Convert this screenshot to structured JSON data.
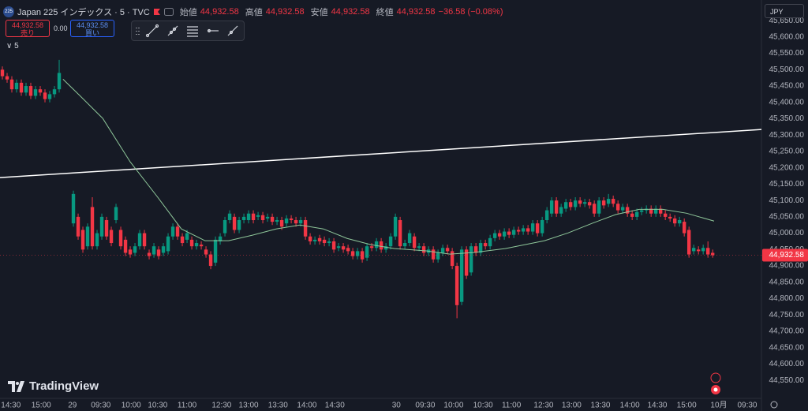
{
  "chart_data": {
    "type": "candlestick",
    "title": "Japan 225 インデックス · 5 · TVC",
    "symbol_badge": "225",
    "ohlc_labels": [
      "始値",
      "高値",
      "安値",
      "終値"
    ],
    "ohlc_values": [
      "44,932.58",
      "44,932.58",
      "44,932.58",
      "44,932.58"
    ],
    "change": "−36.58 (−0.08%)",
    "sell_price": "44,932.58",
    "sell_label": "売り",
    "spread": "0.00",
    "buy_price": "44,932.58",
    "buy_label": "買い",
    "indicator_label": "5",
    "currency": "JPY",
    "logo": "TradingView",
    "up_color": "#089981",
    "down_color": "#f23645",
    "last_price": {
      "value": 44932.58,
      "label": "44,932.58"
    },
    "xlim": [
      -0.5,
      160.3
    ],
    "xticks": [
      {
        "value": 1.8,
        "label": "14:30"
      },
      {
        "value": 8.2,
        "label": "15:00"
      },
      {
        "value": 14.8,
        "label": "29"
      },
      {
        "value": 20.8,
        "label": "09:30"
      },
      {
        "value": 27.2,
        "label": "10:00"
      },
      {
        "value": 32.8,
        "label": "10:30"
      },
      {
        "value": 39,
        "label": "11:00"
      },
      {
        "value": 46.3,
        "label": "12:30"
      },
      {
        "value": 52,
        "label": "13:00"
      },
      {
        "value": 58.2,
        "label": "13:30"
      },
      {
        "value": 64.3,
        "label": "14:00"
      },
      {
        "value": 70.2,
        "label": "14:30"
      },
      {
        "value": 83.2,
        "label": "30"
      },
      {
        "value": 89.3,
        "label": "09:30"
      },
      {
        "value": 95.3,
        "label": "10:00"
      },
      {
        "value": 101.5,
        "label": "10:30"
      },
      {
        "value": 107.5,
        "label": "11:00"
      },
      {
        "value": 114.3,
        "label": "12:30"
      },
      {
        "value": 120.2,
        "label": "13:00"
      },
      {
        "value": 126.3,
        "label": "13:30"
      },
      {
        "value": 132.5,
        "label": "14:00"
      },
      {
        "value": 138.3,
        "label": "14:30"
      },
      {
        "value": 144.5,
        "label": "15:00"
      },
      {
        "value": 151.3,
        "label": "10月"
      },
      {
        "value": 157.3,
        "label": "09:30"
      }
    ],
    "ylim": [
      44507,
      45713
    ],
    "yticks": [
      {
        "value": 44550,
        "label": "44,550.00"
      },
      {
        "value": 44600,
        "label": "44,600.00"
      },
      {
        "value": 44650,
        "label": "44,650.00"
      },
      {
        "value": 44700,
        "label": "44,700.00"
      },
      {
        "value": 44750,
        "label": "44,750.00"
      },
      {
        "value": 44800,
        "label": "44,800.00"
      },
      {
        "value": 44850,
        "label": "44,850.00"
      },
      {
        "value": 44900,
        "label": "44,900.00"
      },
      {
        "value": 44950,
        "label": "44,950.00"
      },
      {
        "value": 45000,
        "label": "45,000.00"
      },
      {
        "value": 45050,
        "label": "45,050.00"
      },
      {
        "value": 45100,
        "label": "45,100.00"
      },
      {
        "value": 45150,
        "label": "45,150.00"
      },
      {
        "value": 45200,
        "label": "45,200.00"
      },
      {
        "value": 45250,
        "label": "45,250.00"
      },
      {
        "value": 45300,
        "label": "45,300.00"
      },
      {
        "value": 45350,
        "label": "45,350.00"
      },
      {
        "value": 45400,
        "label": "45,400.00"
      },
      {
        "value": 45450,
        "label": "45,450.00"
      },
      {
        "value": 45500,
        "label": "45,500.00"
      },
      {
        "value": 45550,
        "label": "45,550.00"
      },
      {
        "value": 45600,
        "label": "45,600.00"
      },
      {
        "value": 45650,
        "label": "45,650.00"
      }
    ],
    "open": [
      45500,
      45480,
      45470,
      45440,
      45460,
      45430,
      45450,
      45420,
      45440,
      45430,
      45410,
      45425,
      45440,
      null,
      null,
      45030,
      45050,
      45010,
      44960,
      45080,
      44960,
      44990,
      45040,
      45010,
      45040,
      45010,
      44980,
      44950,
      44940,
      44960,
      45000,
      44940,
      44935,
      44950,
      44940,
      44945,
      44990,
      45020,
      44990,
      44980,
      44980,
      44960,
      44965,
      44950,
      44935,
      44910,
      44975,
      45000,
      45040,
      45050,
      45010,
      45040,
      45040,
      45060,
      45050,
      45055,
      45045,
      45050,
      45035,
      45040,
      45030,
      45045,
      45040,
      45030,
      45040,
      44990,
      44975,
      44985,
      44980,
      44970,
      44975,
      44955,
      44960,
      44955,
      44945,
      44930,
      44945,
      44925,
      44960,
      44955,
      44975,
      44950,
      44960,
      44990,
      45040,
      44960,
      44970,
      44990,
      44955,
      44960,
      44940,
      44950,
      44920,
      44940,
      44955,
      44945,
      44900,
      44790,
      44950,
      44880,
      44960,
      44940,
      44970,
      44960,
      44985,
      45000,
      44990,
      45005,
      44995,
      45010,
      45005,
      45015,
      45005,
      45030,
      45000,
      45040,
      45060,
      45100,
      45060,
      45075,
      45095,
      45080,
      45100,
      45090,
      45095,
      45090,
      45060,
      45100,
      45090,
      45105,
      45090,
      45070,
      45080,
      45060,
      45050,
      45065,
      45070,
      45075,
      45060,
      45075,
      45060,
      45050,
      45045,
      45030,
      45035,
      45010,
      44945,
      44950,
      44945,
      44955,
      44940
    ],
    "high": [
      45510,
      45490,
      45480,
      45470,
      45470,
      45460,
      45460,
      45450,
      45450,
      45440,
      45435,
      45450,
      45530,
      null,
      null,
      45130,
      45060,
      45020,
      45030,
      45110,
      45010,
      45060,
      45050,
      45020,
      45090,
      45020,
      44990,
      44960,
      44970,
      45010,
      45010,
      44950,
      44970,
      44960,
      44970,
      45000,
      45030,
      45030,
      45000,
      45010,
      44990,
      44980,
      44975,
      44960,
      44945,
      44990,
      45000,
      45050,
      45070,
      45060,
      45050,
      45060,
      45070,
      45070,
      45065,
      45065,
      45060,
      45060,
      45050,
      45050,
      45055,
      45055,
      45050,
      45050,
      45050,
      45000,
      44990,
      44995,
      44990,
      44985,
      44985,
      44970,
      44970,
      44965,
      44955,
      44955,
      44955,
      44970,
      44970,
      44985,
      44985,
      44970,
      45000,
      45060,
      45050,
      44980,
      45010,
      45000,
      44970,
      44970,
      44960,
      44960,
      44950,
      44965,
      44965,
      44955,
      44910,
      44960,
      44960,
      44970,
      44970,
      44980,
      44980,
      44995,
      45010,
      45010,
      45015,
      45015,
      45020,
      45020,
      45025,
      45025,
      45040,
      45040,
      45050,
      45080,
      45110,
      45110,
      45090,
      45105,
      45105,
      45110,
      45110,
      45105,
      45105,
      45100,
      45110,
      45110,
      45120,
      45115,
      45100,
      45090,
      45090,
      45070,
      45075,
      45080,
      45085,
      45085,
      45085,
      45085,
      45070,
      45060,
      45055,
      45050,
      45045,
      45020,
      44965,
      44960,
      44965,
      44975,
      44950
    ],
    "low": [
      45470,
      45460,
      45430,
      45430,
      45420,
      45420,
      45410,
      45410,
      45420,
      45400,
      45400,
      45415,
      45430,
      null,
      null,
      45020,
      44980,
      44940,
      44950,
      44950,
      44950,
      44980,
      44980,
      44960,
      45030,
      44950,
      44930,
      44925,
      44930,
      44950,
      44950,
      44920,
      44925,
      44920,
      44930,
      44935,
      44980,
      44980,
      44960,
      44970,
      44950,
      44950,
      44950,
      44925,
      44890,
      44900,
      44965,
      44990,
      45030,
      45000,
      45000,
      45030,
      45030,
      45030,
      45040,
      45030,
      45035,
      45025,
      45025,
      45010,
      45020,
      45030,
      45020,
      45020,
      44980,
      44965,
      44965,
      44965,
      44960,
      44960,
      44940,
      44945,
      44940,
      44935,
      44920,
      44920,
      44910,
      44915,
      44945,
      44945,
      44940,
      44940,
      44950,
      44980,
      44950,
      44950,
      44960,
      44945,
      44945,
      44930,
      44930,
      44910,
      44910,
      44930,
      44935,
      44890,
      44740,
      44780,
      44860,
      44870,
      44930,
      44930,
      44950,
      44950,
      44975,
      44980,
      44980,
      44985,
      44985,
      44995,
      44995,
      44995,
      44995,
      44990,
      44990,
      45030,
      45050,
      45050,
      45050,
      45065,
      45070,
      45070,
      45080,
      45080,
      45075,
      45050,
      45050,
      45075,
      45080,
      45080,
      45060,
      45060,
      45050,
      45040,
      45040,
      45055,
      45060,
      45050,
      45050,
      45050,
      45040,
      45035,
      45020,
      45020,
      44990,
      44925,
      44935,
      44935,
      44935,
      44925,
      44925
    ],
    "close": [
      45480,
      45470,
      45440,
      45460,
      45430,
      45450,
      45420,
      45440,
      45430,
      45410,
      45425,
      45440,
      45490,
      null,
      null,
      45120,
      44990,
      44950,
      45020,
      44960,
      45000,
      45050,
      44990,
      44970,
      45080,
      44960,
      44940,
      44935,
      44960,
      45000,
      44960,
      44930,
      44960,
      44930,
      44960,
      44990,
      45020,
      44990,
      44970,
      45000,
      44960,
      44970,
      44960,
      44935,
      44900,
      44980,
      44990,
      45040,
      45060,
      45010,
      45040,
      45050,
      45060,
      45040,
      45055,
      45040,
      45050,
      45035,
      45040,
      45020,
      45045,
      45040,
      45030,
      45040,
      44990,
      44975,
      44980,
      44975,
      44970,
      44975,
      44950,
      44960,
      44950,
      44945,
      44930,
      44945,
      44920,
      44960,
      44955,
      44975,
      44950,
      44960,
      44990,
      45050,
      44960,
      44970,
      45000,
      44955,
      44960,
      44940,
      44950,
      44920,
      44940,
      44955,
      44945,
      44900,
      44780,
      44950,
      44870,
      44960,
      44940,
      44970,
      44960,
      44985,
      45000,
      44990,
      45005,
      44995,
      45010,
      45005,
      45015,
      45005,
      45030,
      45000,
      45040,
      45070,
      45100,
      45060,
      45080,
      45095,
      45080,
      45100,
      45090,
      45095,
      45085,
      45060,
      45100,
      45085,
      45105,
      45090,
      45070,
      45080,
      45060,
      45050,
      45065,
      45070,
      45075,
      45060,
      45075,
      45060,
      45050,
      45045,
      45030,
      45040,
      45000,
      44935,
      44955,
      44945,
      44955,
      44935,
      44932.58
    ],
    "moving_average": {
      "color": "#8fc79a",
      "x": [
        12.8,
        16.2,
        21.2,
        27,
        32.8,
        37.8,
        42.8,
        47.8,
        52.8,
        57.8,
        62.8,
        67.8,
        72.8,
        77.8,
        82.8,
        89.5,
        94.5,
        99.5,
        106.2,
        114.5,
        119.5,
        124.5,
        129.5,
        134.5,
        139.5,
        144.5,
        150.3
      ],
      "values": [
        45471,
        45423,
        45351,
        45218,
        45110,
        45013,
        44977,
        44977,
        44994,
        45013,
        45025,
        45013,
        44984,
        44965,
        44953,
        44946,
        44936,
        44941,
        44953,
        44977,
        45001,
        45030,
        45057,
        45073,
        45073,
        45061,
        45037
      ]
    },
    "trendline": {
      "color": "#ffffff",
      "x": [
        -0.5,
        160.3
      ],
      "values": [
        45170,
        45317
      ]
    }
  }
}
